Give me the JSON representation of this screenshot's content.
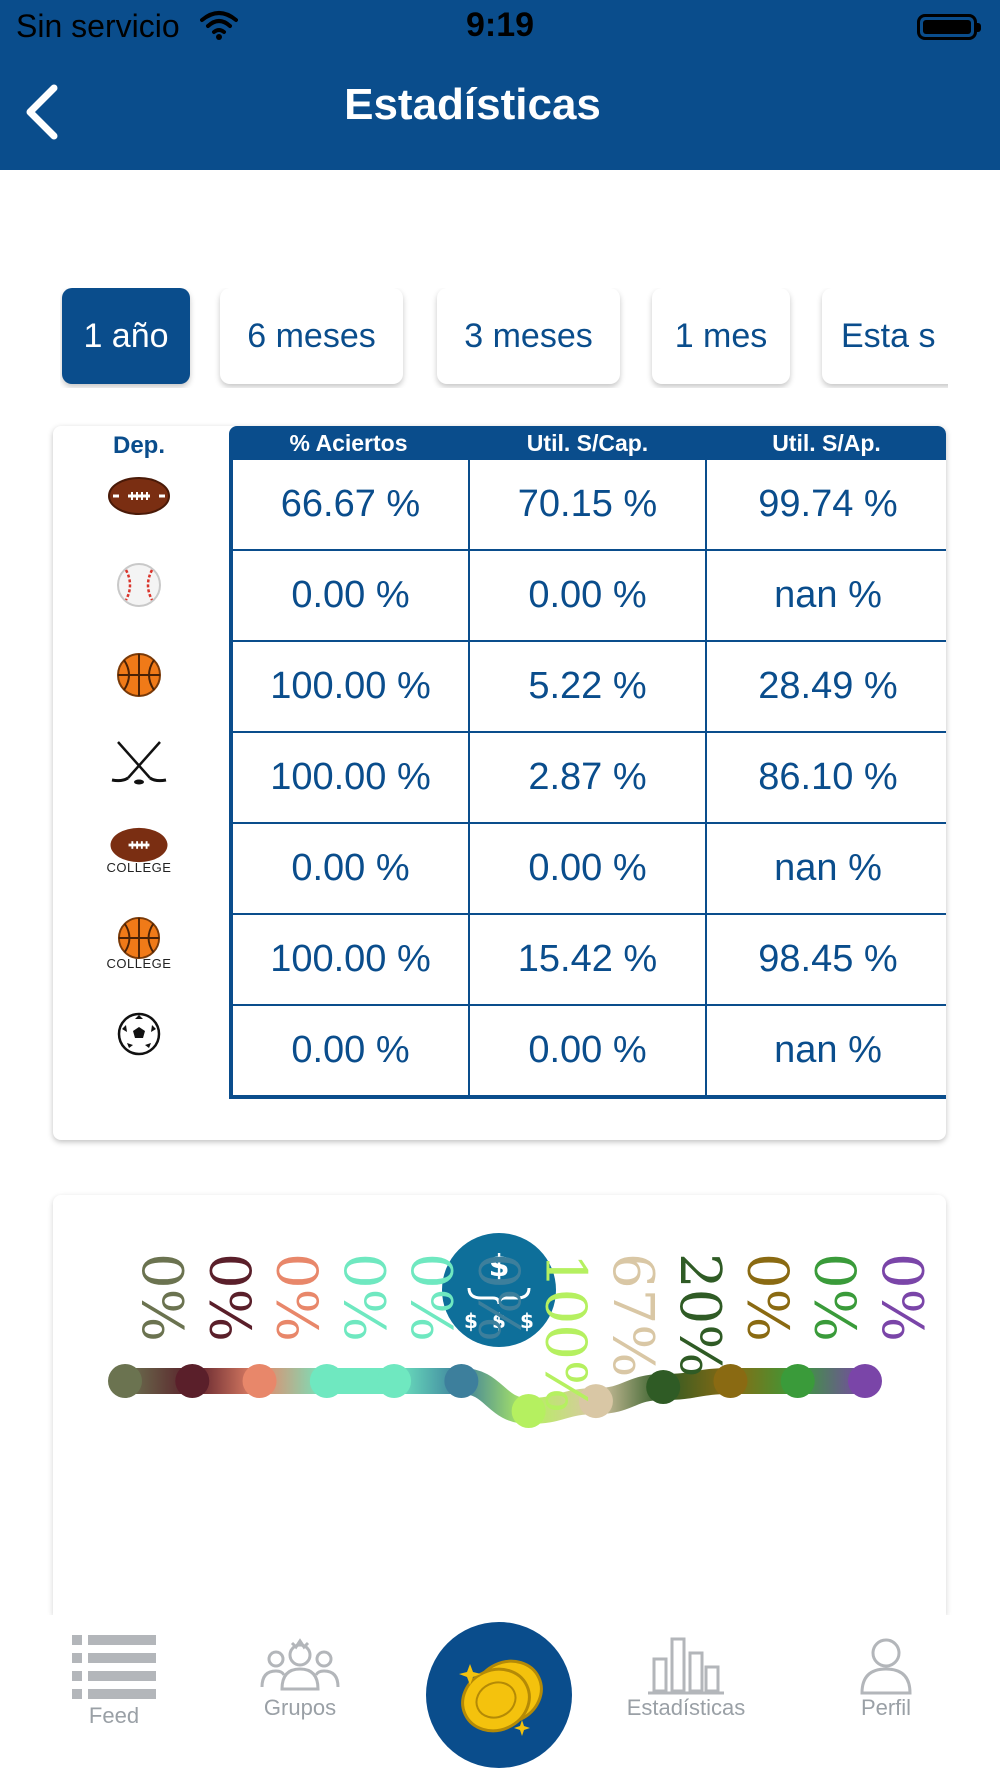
{
  "status_bar": {
    "carrier": "Sin servicio",
    "time": "9:19"
  },
  "header": {
    "title": "Estadísticas"
  },
  "period_tabs": [
    {
      "label": "1 año",
      "active": true
    },
    {
      "label": "6 meses",
      "active": false
    },
    {
      "label": "3 meses",
      "active": false
    },
    {
      "label": "1 mes",
      "active": false
    },
    {
      "label": "Esta s",
      "active": false
    }
  ],
  "stats_table": {
    "columns": {
      "sport": "Dep.",
      "hit_rate": "% Aciertos",
      "util_cap": "Util. S/Cap.",
      "util_ap": "Util. S/Ap."
    },
    "rows": [
      {
        "sport_icon": "football-icon",
        "sport_label": "",
        "hit_rate": "66.67 %",
        "util_cap": "70.15 %",
        "util_ap": "99.74 %"
      },
      {
        "sport_icon": "baseball-icon",
        "sport_label": "",
        "hit_rate": "0.00 %",
        "util_cap": "0.00 %",
        "util_ap": "nan %"
      },
      {
        "sport_icon": "basketball-icon",
        "sport_label": "",
        "hit_rate": "100.00 %",
        "util_cap": "5.22 %",
        "util_ap": "28.49 %"
      },
      {
        "sport_icon": "hockey-icon",
        "sport_label": "",
        "hit_rate": "100.00 %",
        "util_cap": "2.87 %",
        "util_ap": "86.10 %"
      },
      {
        "sport_icon": "college-football-icon",
        "sport_label": "COLLEGE",
        "hit_rate": "0.00 %",
        "util_cap": "0.00 %",
        "util_ap": "nan %"
      },
      {
        "sport_icon": "college-basketball-icon",
        "sport_label": "COLLEGE",
        "hit_rate": "100.00 %",
        "util_cap": "15.42 %",
        "util_ap": "98.45 %"
      },
      {
        "sport_icon": "soccer-icon",
        "sport_label": "",
        "hit_rate": "0.00 %",
        "util_cap": "0.00 %",
        "util_ap": "nan %"
      }
    ]
  },
  "chart_card": {
    "icon": "money-distribution-icon"
  },
  "chart_data": {
    "type": "line",
    "categories": [
      "",
      "",
      "",
      "",
      "",
      "",
      "",
      "",
      "",
      "",
      "",
      ""
    ],
    "series": [
      {
        "values": [
          0,
          0,
          0,
          0,
          0,
          0,
          100,
          67,
          20,
          0,
          0,
          0
        ]
      }
    ],
    "data_labels": [
      "0%",
      "0%",
      "0%",
      "0%",
      "0%",
      "0%",
      "100%",
      "67%",
      "20%",
      "0%",
      "0%",
      "0%"
    ],
    "point_colors": [
      "#6b7350",
      "#5a1f2a",
      "#e8876a",
      "#6fe8c0",
      "#6fe8c0",
      "#3d7f9c",
      "#b5f060",
      "#d9c7a5",
      "#2f5b25",
      "#8a6a12",
      "#3a9b3a",
      "#7a45a8"
    ],
    "ylim": [
      0,
      100
    ],
    "grid": false,
    "legend": "none"
  },
  "tab_bar": {
    "items": [
      {
        "label": "Feed",
        "icon": "feed-icon"
      },
      {
        "label": "Grupos",
        "icon": "groups-icon"
      },
      {
        "label": "",
        "icon": "coins-icon"
      },
      {
        "label": "Estadísticas",
        "icon": "bar-chart-icon"
      },
      {
        "label": "Perfil",
        "icon": "profile-icon"
      }
    ]
  },
  "colors": {
    "primary": "#0a4d8c",
    "inactive": "#9aa0a6",
    "coin_gold": "#f4c20d"
  }
}
